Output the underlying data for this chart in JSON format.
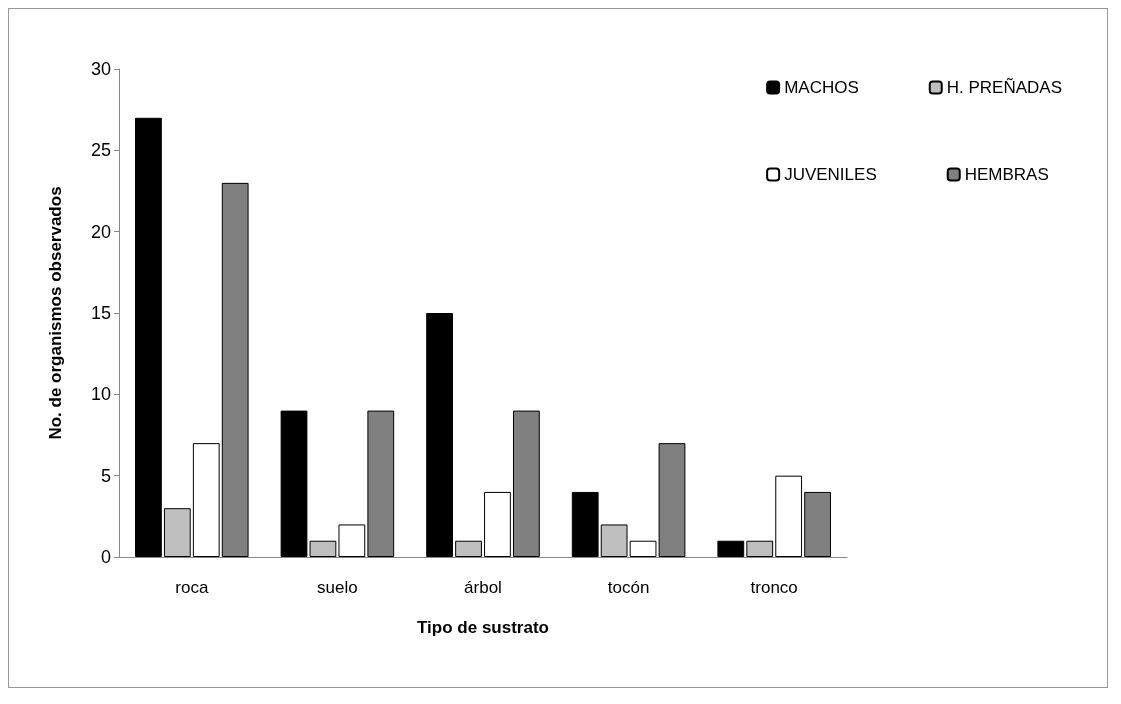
{
  "chart_data": {
    "type": "bar",
    "xlabel": "Tipo de sustrato",
    "ylabel": "No. de organismos observados",
    "categories": [
      "roca",
      "suelo",
      "árbol",
      "tocón",
      "tronco"
    ],
    "series": [
      {
        "name": "MACHOS",
        "color": "#000000",
        "values": [
          27,
          9,
          15,
          4,
          1
        ]
      },
      {
        "name": "H. PREÑADAS",
        "color": "#bfbfbf",
        "values": [
          3,
          1,
          1,
          2,
          1
        ]
      },
      {
        "name": "JUVENILES",
        "color": "#ffffff",
        "values": [
          7,
          2,
          4,
          1,
          5
        ]
      },
      {
        "name": "HEMBRAS",
        "color": "#808080",
        "values": [
          23,
          9,
          9,
          7,
          4
        ]
      }
    ],
    "ylim": [
      0,
      30
    ],
    "yticks": [
      0,
      5,
      10,
      15,
      20,
      25,
      30
    ],
    "grid": false,
    "legend": "top right"
  }
}
